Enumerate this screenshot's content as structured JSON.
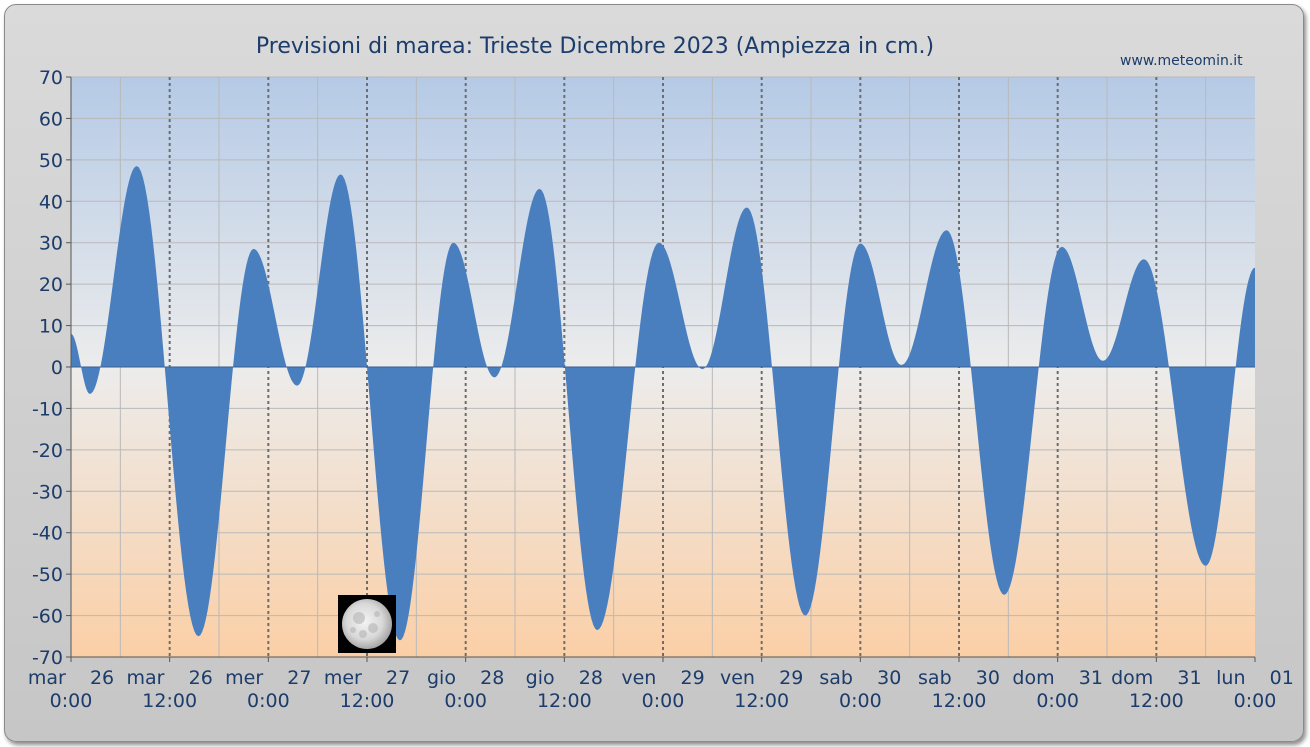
{
  "header": {
    "title": "Previsioni di marea: Trieste Dicembre 2023 (Ampiezza in cm.)",
    "credit": "www.meteomin.it"
  },
  "colors": {
    "fill": "#4a7fbf",
    "plot_top": "#b5cae6",
    "plot_mid": "#ececec",
    "plot_bottom": "#fbcfa6",
    "text": "#1c3c6b"
  },
  "chart_data": {
    "type": "area",
    "title": "Previsioni di marea: Trieste Dicembre 2023 (Ampiezza in cm.)",
    "xlabel": "",
    "ylabel": "",
    "ylim": [
      -70,
      70
    ],
    "yticks": [
      70,
      60,
      50,
      40,
      30,
      20,
      10,
      0,
      -10,
      -20,
      -30,
      -40,
      -50,
      -60,
      -70
    ],
    "grid": true,
    "x_unit": "hours since mar 26 0:00",
    "xlim": [
      0,
      144
    ],
    "x_tick_labels": [
      {
        "line1": "mar    26",
        "line2": "0:00"
      },
      {
        "line1": "mar    26",
        "line2": "12:00"
      },
      {
        "line1": "mer    27",
        "line2": "0:00"
      },
      {
        "line1": "mer    27",
        "line2": "12:00"
      },
      {
        "line1": "gio    28",
        "line2": "0:00"
      },
      {
        "line1": "gio    28",
        "line2": "12:00"
      },
      {
        "line1": "ven    29",
        "line2": "0:00"
      },
      {
        "line1": "ven    29",
        "line2": "12:00"
      },
      {
        "line1": "sab    30",
        "line2": "0:00"
      },
      {
        "line1": "sab    30",
        "line2": "12:00"
      },
      {
        "line1": "dom    31",
        "line2": "0:00"
      },
      {
        "line1": "dom    31",
        "line2": "12:00"
      },
      {
        "line1": "lun    01",
        "line2": "0:00"
      }
    ],
    "series": [
      {
        "values": [
          [
            0,
            8
          ],
          [
            2.3,
            -6.5
          ],
          [
            8,
            48.5
          ],
          [
            15.5,
            -65
          ],
          [
            22.2,
            28.5
          ],
          [
            27.5,
            -4.5
          ],
          [
            32.8,
            46.5
          ],
          [
            40,
            -66
          ],
          [
            46.5,
            30
          ],
          [
            51.5,
            -2.5
          ],
          [
            57,
            43
          ],
          [
            64,
            -63.5
          ],
          [
            71.5,
            30
          ],
          [
            76.8,
            -0.5
          ],
          [
            82.2,
            38.5
          ],
          [
            89.3,
            -60
          ],
          [
            96,
            29.8
          ],
          [
            101,
            0.5
          ],
          [
            106.5,
            33
          ],
          [
            113.5,
            -55
          ],
          [
            120.5,
            29
          ],
          [
            125.5,
            1.5
          ],
          [
            130.5,
            26
          ],
          [
            138,
            -48
          ],
          [
            144,
            24
          ]
        ]
      }
    ],
    "annotations": [
      {
        "type": "moon-phase",
        "phase": "full-moon",
        "x": 36
      }
    ]
  }
}
